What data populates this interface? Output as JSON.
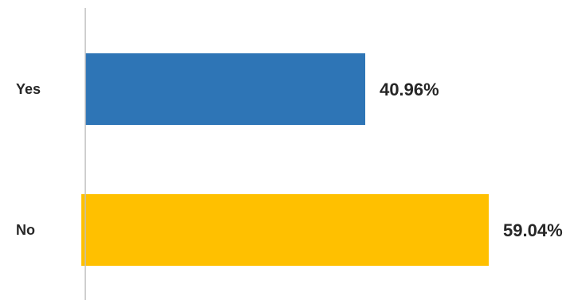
{
  "chart_data": {
    "type": "bar",
    "orientation": "horizontal",
    "categories": [
      "Yes",
      "No"
    ],
    "values": [
      40.96,
      59.04
    ],
    "value_labels": [
      "40.96%",
      "59.04%"
    ],
    "colors": [
      "#2E75B6",
      "#FFC000"
    ],
    "xlim": [
      0,
      70
    ],
    "grid": false,
    "legend": "none",
    "axis_color": "#BFBFBF"
  }
}
